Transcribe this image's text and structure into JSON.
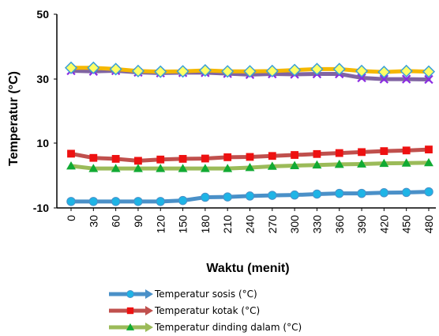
{
  "chart_data": {
    "type": "line",
    "xlabel": "Waktu (menit)",
    "ylabel": "Temperatur (°C)",
    "ylim": [
      -10,
      50
    ],
    "y_ticks": [
      -10,
      10,
      30,
      50
    ],
    "x": [
      0,
      30,
      60,
      90,
      120,
      150,
      180,
      210,
      240,
      270,
      300,
      330,
      360,
      390,
      420,
      450,
      480
    ],
    "grid": false,
    "legend_position": "bottom",
    "series": [
      {
        "name": "Temperatur sosis (°C)",
        "color": "#4a90c8",
        "marker": "circle",
        "marker_color": "#1eb4e6",
        "values": [
          -8,
          -8,
          -8,
          -8,
          -8,
          -7.7,
          -6.7,
          -6.6,
          -6.3,
          -6.1,
          -6.0,
          -5.7,
          -5.5,
          -5.5,
          -5.3,
          -5.2,
          -5.0
        ]
      },
      {
        "name": "Temperatur kotak (°C)",
        "color": "#c0504d",
        "marker": "square",
        "marker_color": "#ee1111",
        "values": [
          6.8,
          5.5,
          5.2,
          4.6,
          5.0,
          5.2,
          5.3,
          5.7,
          5.8,
          6.1,
          6.4,
          6.7,
          7.0,
          7.3,
          7.6,
          7.8,
          8.1
        ]
      },
      {
        "name": "Temperatur dinding dalam (°C)",
        "color": "#9bbb59",
        "marker": "triangle",
        "marker_color": "#11aa33",
        "values": [
          3.0,
          2.2,
          2.2,
          2.2,
          2.2,
          2.2,
          2.2,
          2.2,
          2.5,
          2.9,
          3.1,
          3.3,
          3.5,
          3.6,
          3.8,
          3.9,
          4.0
        ]
      },
      {
        "name": "",
        "color": "#8064a2",
        "marker": "x",
        "marker_color": "#8a2be2",
        "values": [
          32.5,
          32.3,
          32.5,
          32.0,
          31.8,
          31.9,
          31.9,
          31.6,
          31.3,
          31.5,
          31.4,
          31.5,
          31.5,
          30.3,
          29.9,
          29.9,
          29.8
        ]
      },
      {
        "name": "",
        "color": "#f5b800",
        "marker": "diamond",
        "marker_color": "#ffff66",
        "values": [
          33.4,
          33.4,
          33.0,
          32.4,
          32.2,
          32.3,
          32.6,
          32.3,
          32.3,
          32.4,
          32.7,
          33.0,
          33.0,
          32.4,
          32.1,
          32.4,
          32.2
        ]
      }
    ]
  }
}
